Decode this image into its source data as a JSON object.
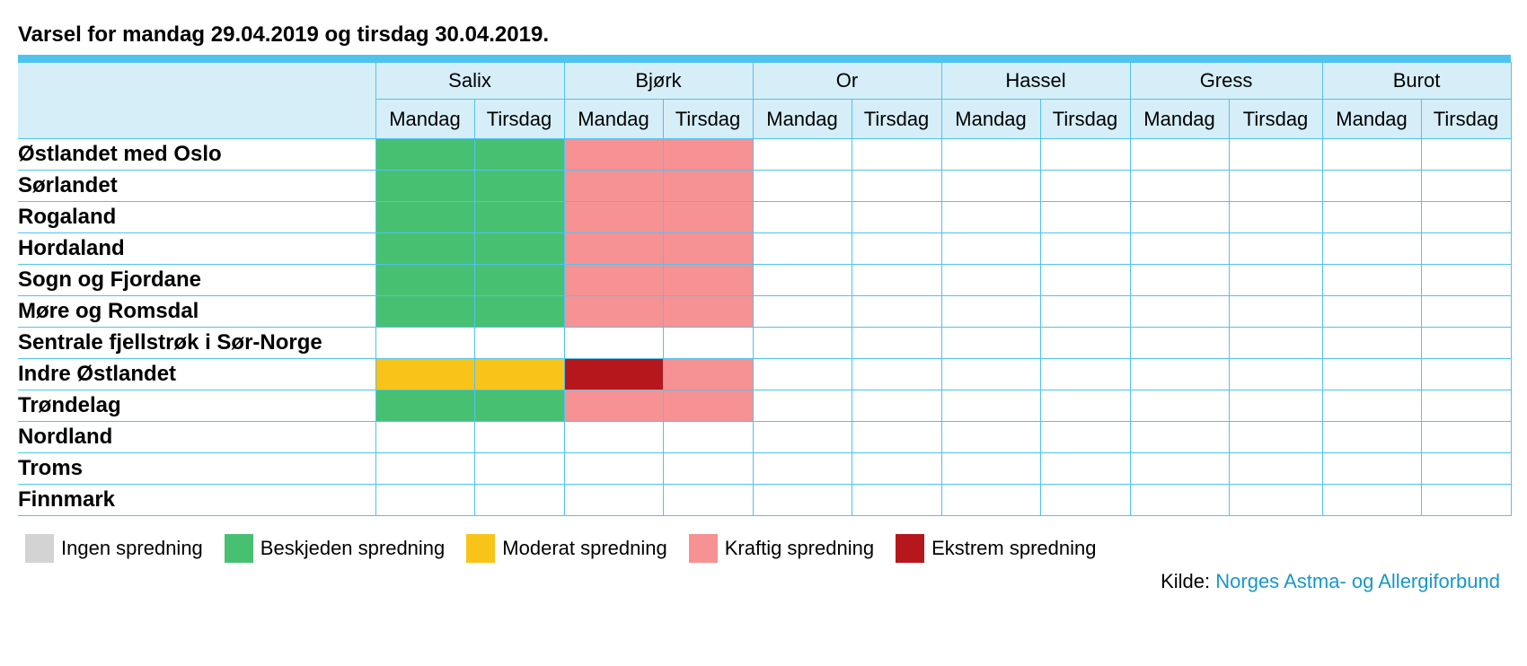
{
  "title": "Varsel for mandag 29.04.2019 og tirsdag 30.04.2019.",
  "plants": [
    "Salix",
    "Bjørk",
    "Or",
    "Hassel",
    "Gress",
    "Burot"
  ],
  "days": [
    "Mandag",
    "Tirsdag"
  ],
  "level_colors": {
    "0": "#d3d3d3",
    "1": "#48c072",
    "2": "#f9c41a",
    "3": "#f69293",
    "4": "#b5171c"
  },
  "rows": [
    {
      "region": "Østlandet med Oslo",
      "levels": [
        1,
        1,
        3,
        3,
        null,
        null,
        null,
        null,
        null,
        null,
        null,
        null
      ]
    },
    {
      "region": "Sørlandet",
      "levels": [
        1,
        1,
        3,
        3,
        null,
        null,
        null,
        null,
        null,
        null,
        null,
        null
      ]
    },
    {
      "region": "Rogaland",
      "levels": [
        1,
        1,
        3,
        3,
        null,
        null,
        null,
        null,
        null,
        null,
        null,
        null
      ]
    },
    {
      "region": "Hordaland",
      "levels": [
        1,
        1,
        3,
        3,
        null,
        null,
        null,
        null,
        null,
        null,
        null,
        null
      ]
    },
    {
      "region": "Sogn og Fjordane",
      "levels": [
        1,
        1,
        3,
        3,
        null,
        null,
        null,
        null,
        null,
        null,
        null,
        null
      ]
    },
    {
      "region": "Møre og Romsdal",
      "levels": [
        1,
        1,
        3,
        3,
        null,
        null,
        null,
        null,
        null,
        null,
        null,
        null
      ]
    },
    {
      "region": "Sentrale fjellstrøk i Sør-Norge",
      "levels": [
        null,
        null,
        null,
        null,
        null,
        null,
        null,
        null,
        null,
        null,
        null,
        null
      ]
    },
    {
      "region": "Indre Østlandet",
      "levels": [
        2,
        2,
        4,
        3,
        null,
        null,
        null,
        null,
        null,
        null,
        null,
        null
      ]
    },
    {
      "region": "Trøndelag",
      "levels": [
        1,
        1,
        3,
        3,
        null,
        null,
        null,
        null,
        null,
        null,
        null,
        null
      ]
    },
    {
      "region": "Nordland",
      "levels": [
        null,
        null,
        null,
        null,
        null,
        null,
        null,
        null,
        null,
        null,
        null,
        null
      ]
    },
    {
      "region": "Troms",
      "levels": [
        null,
        null,
        null,
        null,
        null,
        null,
        null,
        null,
        null,
        null,
        null,
        null
      ]
    },
    {
      "region": "Finnmark",
      "levels": [
        null,
        null,
        null,
        null,
        null,
        null,
        null,
        null,
        null,
        null,
        null,
        null
      ]
    }
  ],
  "legend": [
    {
      "label": "Ingen spredning",
      "level": 0
    },
    {
      "label": "Beskjeden spredning",
      "level": 1
    },
    {
      "label": "Moderat spredning",
      "level": 2
    },
    {
      "label": "Kraftig spredning",
      "level": 3
    },
    {
      "label": "Ekstrem spredning",
      "level": 4
    }
  ],
  "source": {
    "prefix": "Kilde:",
    "link_text": "Norges Astma- og Allergiforbund"
  }
}
